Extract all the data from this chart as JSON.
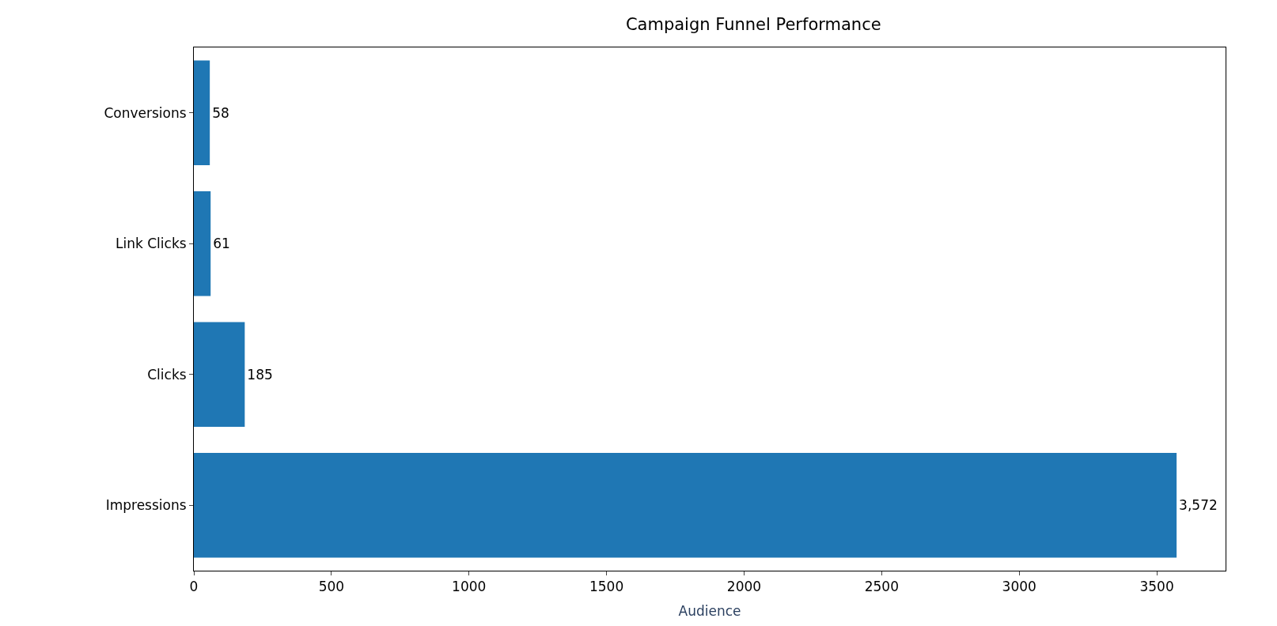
{
  "chart_data": {
    "type": "bar",
    "orientation": "horizontal",
    "title": "Campaign Funnel Performance",
    "xlabel": "Audience",
    "categories": [
      "Conversions",
      "Link Clicks",
      "Clicks",
      "Impressions"
    ],
    "values": [
      58,
      61,
      185,
      3572
    ],
    "value_labels": [
      "58",
      "61",
      "185",
      "3,572"
    ],
    "color": "#1f77b4",
    "xlim": [
      0,
      3750
    ],
    "xticks": [
      0,
      500,
      1000,
      1500,
      2000,
      2500,
      3000,
      3500
    ],
    "legend": false
  }
}
